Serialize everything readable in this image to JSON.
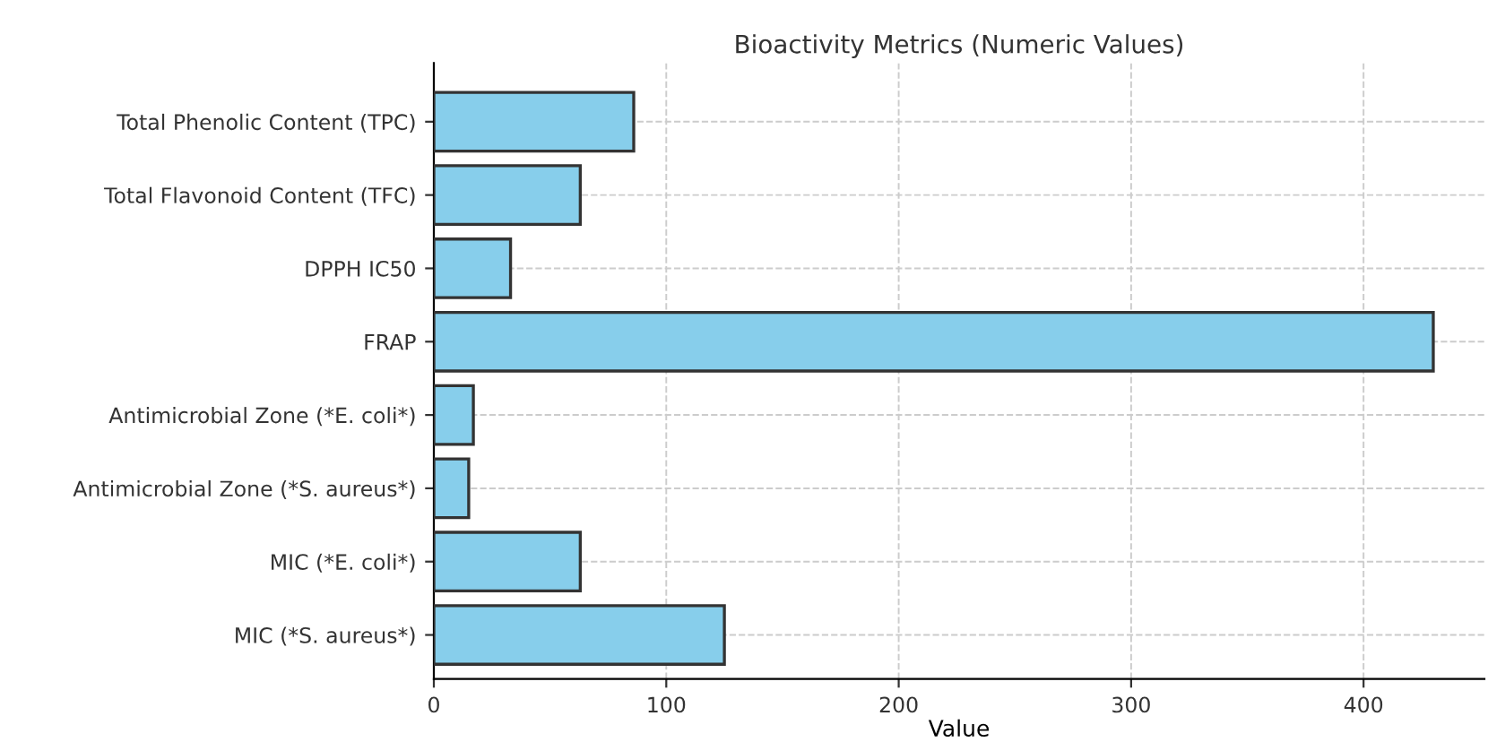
{
  "chart_data": {
    "type": "bar",
    "orientation": "horizontal",
    "title": "Bioactivity Metrics (Numeric Values)",
    "xlabel": "Value",
    "categories": [
      "Total Phenolic Content (TPC)",
      "Total Flavonoid Content (TFC)",
      "DPPH IC50",
      "FRAP",
      "Antimicrobial Zone (*E. coli*)",
      "Antimicrobial Zone (*S. aureus*)",
      "MIC (*E. coli*)",
      "MIC (*S. aureus*)"
    ],
    "values": [
      86,
      63,
      33,
      430,
      17,
      15,
      63,
      125
    ],
    "color": "#87ceeb",
    "xlim": [
      0,
      452
    ],
    "xticks": [
      0,
      100,
      200,
      300,
      400
    ],
    "grid": true
  }
}
